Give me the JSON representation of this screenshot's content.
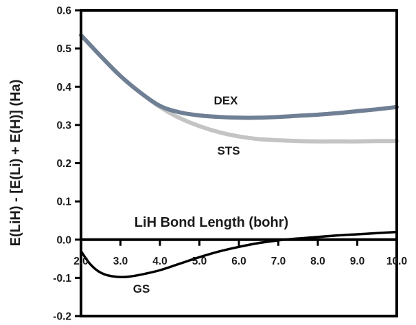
{
  "chart_data": {
    "type": "line",
    "title": "",
    "xlabel": "LiH Bond Length (bohr)",
    "ylabel": "E(LiH) - [E(Li) + E(H)] (Ha)",
    "xlim": [
      2.0,
      10.0
    ],
    "ylim": [
      -0.2,
      0.6
    ],
    "x_ticks": [
      "2.0",
      "3.0",
      "4.0",
      "5.0",
      "6.0",
      "7.0",
      "8.0",
      "9.0",
      "10.0"
    ],
    "y_ticks": [
      "-0.2",
      "-0.1",
      "0.0",
      "0.1",
      "0.2",
      "0.3",
      "0.4",
      "0.5",
      "0.6"
    ],
    "grid": false,
    "legend": "none (series labeled directly on the chart)",
    "series": [
      {
        "name": "STS",
        "color": "#c4c4c4",
        "x": [
          2.0,
          2.5,
          3.0,
          3.5,
          4.0,
          4.5,
          5.0,
          5.5,
          6.0,
          6.5,
          7.0,
          7.5,
          8.0,
          8.5,
          9.0,
          9.5,
          10.0
        ],
        "y": [
          0.535,
          0.48,
          0.428,
          0.385,
          0.347,
          0.318,
          0.297,
          0.281,
          0.27,
          0.263,
          0.26,
          0.258,
          0.257,
          0.257,
          0.257,
          0.258,
          0.258
        ]
      },
      {
        "name": "DEX",
        "color": "#6f7f94",
        "x": [
          2.0,
          2.5,
          3.0,
          3.5,
          4.0,
          4.5,
          5.0,
          5.5,
          6.0,
          6.5,
          7.0,
          7.5,
          8.0,
          8.5,
          9.0,
          9.5,
          10.0
        ],
        "y": [
          0.535,
          0.48,
          0.428,
          0.385,
          0.35,
          0.333,
          0.325,
          0.321,
          0.319,
          0.319,
          0.321,
          0.324,
          0.327,
          0.331,
          0.336,
          0.341,
          0.347
        ]
      },
      {
        "name": "GS",
        "color": "#000000",
        "x": [
          2.0,
          2.2,
          2.4,
          2.6,
          2.8,
          3.0,
          3.2,
          3.5,
          4.0,
          4.5,
          5.0,
          5.5,
          6.0,
          6.5,
          7.0,
          7.5,
          8.0,
          8.5,
          9.0,
          9.5,
          10.0
        ],
        "y": [
          -0.03,
          -0.06,
          -0.08,
          -0.091,
          -0.096,
          -0.098,
          -0.097,
          -0.092,
          -0.08,
          -0.063,
          -0.046,
          -0.031,
          -0.019,
          -0.009,
          -0.002,
          0.003,
          0.007,
          0.011,
          0.014,
          0.017,
          0.02
        ]
      }
    ]
  }
}
